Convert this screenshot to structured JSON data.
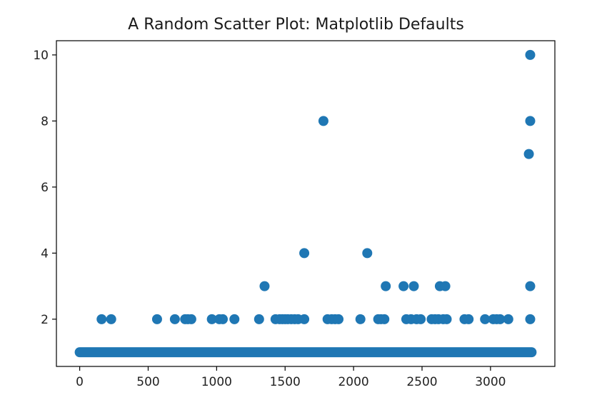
{
  "chart_data": {
    "type": "scatter",
    "title": "A Random Scatter Plot: Matplotlib Defaults",
    "xlabel": "",
    "ylabel": "",
    "xlim": [
      -170,
      3470
    ],
    "ylim": [
      0.57,
      10.43
    ],
    "xticks": [
      0,
      500,
      1000,
      1500,
      2000,
      2500,
      3000
    ],
    "yticks": [
      2,
      4,
      6,
      8,
      10
    ],
    "grid": false,
    "marker_color": "#1f77b4",
    "baseline": {
      "y": 1,
      "x_range": [
        0,
        3300
      ],
      "note_values": "dense run of points at y=1 for every x from 0 to 3300"
    },
    "points": [
      {
        "x": 160,
        "y": 2
      },
      {
        "x": 230,
        "y": 2
      },
      {
        "x": 565,
        "y": 2
      },
      {
        "x": 695,
        "y": 2
      },
      {
        "x": 770,
        "y": 2
      },
      {
        "x": 790,
        "y": 2
      },
      {
        "x": 815,
        "y": 2
      },
      {
        "x": 965,
        "y": 2
      },
      {
        "x": 1020,
        "y": 2
      },
      {
        "x": 1045,
        "y": 2
      },
      {
        "x": 1130,
        "y": 2
      },
      {
        "x": 1310,
        "y": 2
      },
      {
        "x": 1430,
        "y": 2
      },
      {
        "x": 1460,
        "y": 2
      },
      {
        "x": 1480,
        "y": 2
      },
      {
        "x": 1500,
        "y": 2
      },
      {
        "x": 1520,
        "y": 2
      },
      {
        "x": 1545,
        "y": 2
      },
      {
        "x": 1570,
        "y": 2
      },
      {
        "x": 1595,
        "y": 2
      },
      {
        "x": 1640,
        "y": 2
      },
      {
        "x": 1810,
        "y": 2
      },
      {
        "x": 1840,
        "y": 2
      },
      {
        "x": 1865,
        "y": 2
      },
      {
        "x": 1890,
        "y": 2
      },
      {
        "x": 2050,
        "y": 2
      },
      {
        "x": 2180,
        "y": 2
      },
      {
        "x": 2200,
        "y": 2
      },
      {
        "x": 2225,
        "y": 2
      },
      {
        "x": 2385,
        "y": 2
      },
      {
        "x": 2420,
        "y": 2
      },
      {
        "x": 2460,
        "y": 2
      },
      {
        "x": 2490,
        "y": 2
      },
      {
        "x": 2570,
        "y": 2
      },
      {
        "x": 2595,
        "y": 2
      },
      {
        "x": 2620,
        "y": 2
      },
      {
        "x": 2655,
        "y": 2
      },
      {
        "x": 2680,
        "y": 2
      },
      {
        "x": 2810,
        "y": 2
      },
      {
        "x": 2840,
        "y": 2
      },
      {
        "x": 2960,
        "y": 2
      },
      {
        "x": 3020,
        "y": 2
      },
      {
        "x": 3045,
        "y": 2
      },
      {
        "x": 3070,
        "y": 2
      },
      {
        "x": 3130,
        "y": 2
      },
      {
        "x": 3290,
        "y": 2
      },
      {
        "x": 1350,
        "y": 3
      },
      {
        "x": 2235,
        "y": 3
      },
      {
        "x": 2365,
        "y": 3
      },
      {
        "x": 2440,
        "y": 3
      },
      {
        "x": 2630,
        "y": 3
      },
      {
        "x": 2670,
        "y": 3
      },
      {
        "x": 3290,
        "y": 3
      },
      {
        "x": 1640,
        "y": 4
      },
      {
        "x": 2100,
        "y": 4
      },
      {
        "x": 3280,
        "y": 7
      },
      {
        "x": 1780,
        "y": 8
      },
      {
        "x": 3290,
        "y": 8
      },
      {
        "x": 3290,
        "y": 10
      }
    ]
  }
}
